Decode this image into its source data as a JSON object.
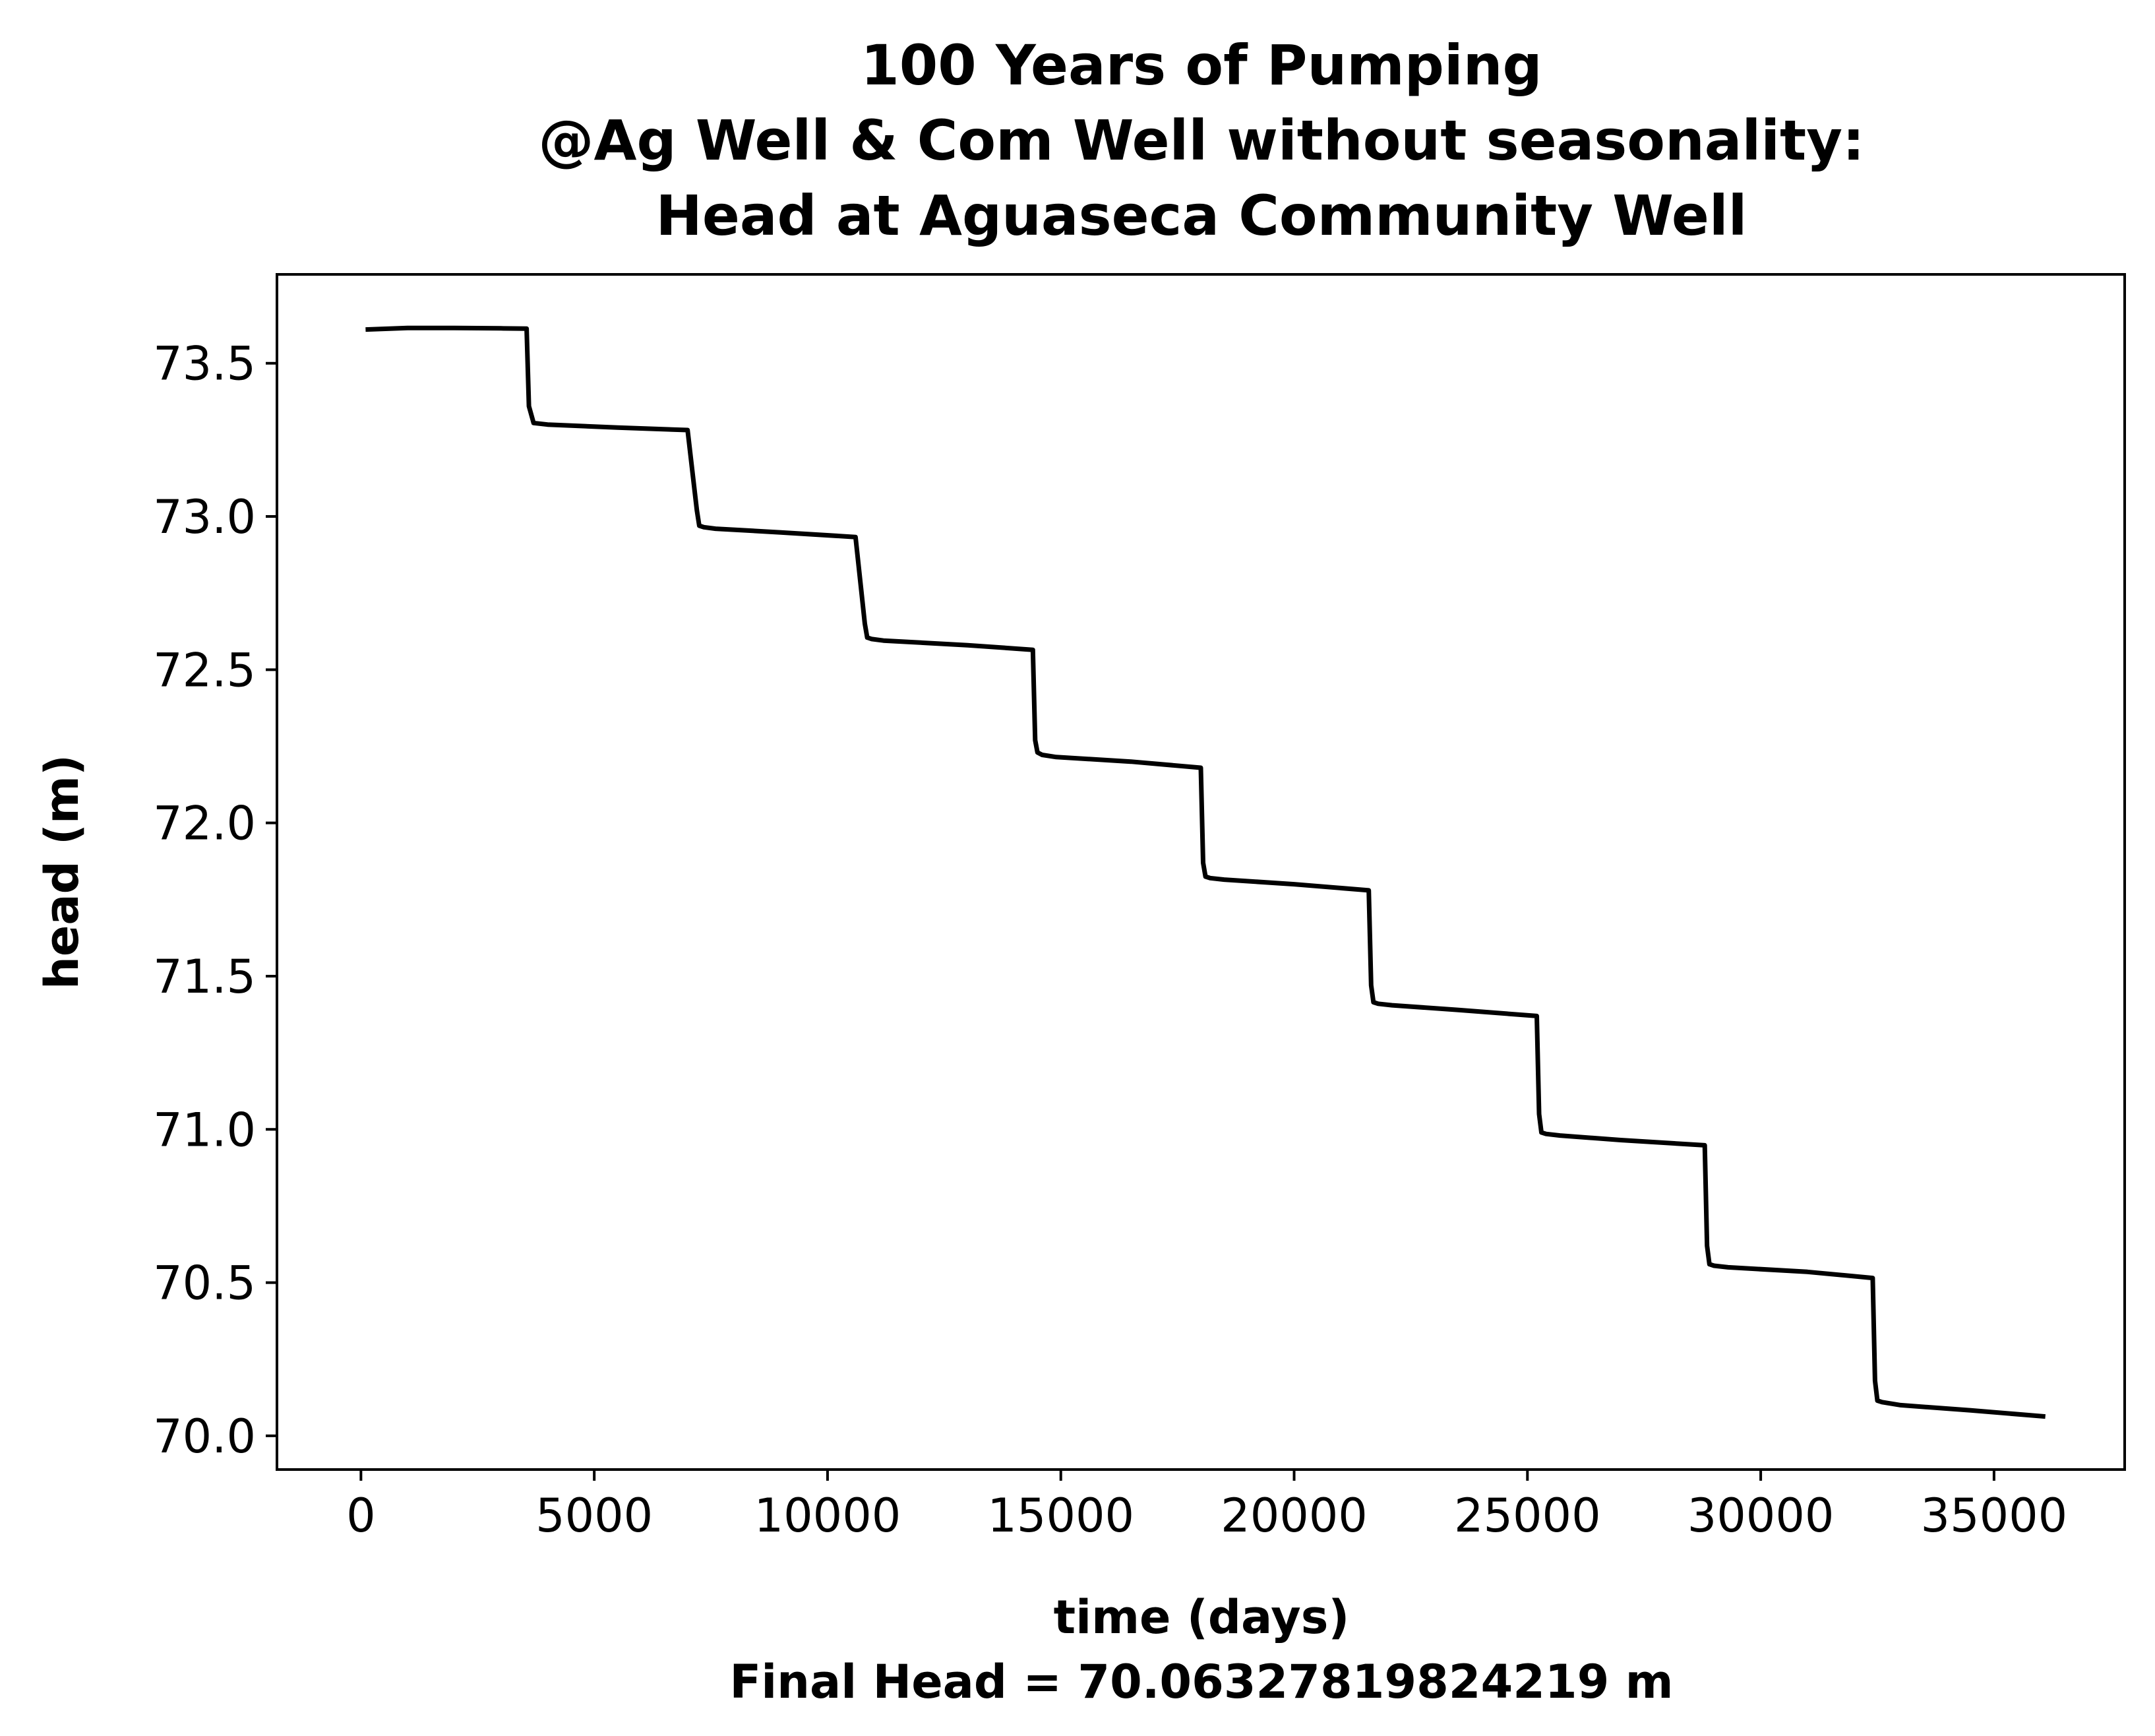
{
  "chart_data": {
    "type": "line",
    "title": [
      "100 Years of Pumping",
      "@Ag Well & Com Well without seasonality:",
      "Head at Aguaseca Community Well"
    ],
    "xlabel": "time (days)",
    "xlabel_sub": "Final Head = 70.06327819824219 m",
    "ylabel": "head (m)",
    "xlim": [
      -1800,
      37800
    ],
    "ylim": [
      69.89,
      73.79
    ],
    "x_ticks": [
      0,
      5000,
      10000,
      15000,
      20000,
      25000,
      30000,
      35000
    ],
    "y_ticks": [
      70.0,
      70.5,
      71.0,
      71.5,
      72.0,
      72.5,
      73.0,
      73.5
    ],
    "y_tick_labels": [
      "70.0",
      "70.5",
      "71.0",
      "71.5",
      "72.0",
      "72.5",
      "73.0",
      "73.5"
    ],
    "grid": false,
    "line_color": "#000000",
    "series": [
      {
        "x": [
          100,
          1000,
          2000,
          3000,
          3550,
          3600,
          3700,
          4000,
          5500,
          7000,
          7200,
          7250,
          7350,
          7600,
          9000,
          10600,
          10800,
          10850,
          10950,
          11200,
          13000,
          14400,
          14450,
          14500,
          14600,
          14900,
          16500,
          18000,
          18050,
          18100,
          18200,
          18500,
          20000,
          21600,
          21650,
          21700,
          21800,
          22100,
          23500,
          25200,
          25250,
          25300,
          25400,
          25700,
          27000,
          28800,
          28850,
          28900,
          29000,
          29300,
          31000,
          32400,
          32450,
          32500,
          32600,
          33000,
          34500,
          36100
        ],
        "y": [
          73.61,
          73.615,
          73.615,
          73.614,
          73.613,
          73.36,
          73.305,
          73.3,
          73.29,
          73.282,
          73.02,
          72.97,
          72.965,
          72.96,
          72.948,
          72.933,
          72.65,
          72.605,
          72.6,
          72.595,
          72.58,
          72.565,
          72.27,
          72.23,
          72.222,
          72.215,
          72.2,
          72.18,
          71.87,
          71.825,
          71.82,
          71.815,
          71.8,
          71.78,
          71.47,
          71.415,
          71.41,
          71.405,
          71.39,
          71.37,
          71.05,
          70.99,
          70.985,
          70.98,
          70.965,
          70.948,
          70.62,
          70.56,
          70.555,
          70.55,
          70.535,
          70.515,
          70.18,
          70.115,
          70.11,
          70.1,
          70.083,
          70.063
        ]
      }
    ]
  }
}
